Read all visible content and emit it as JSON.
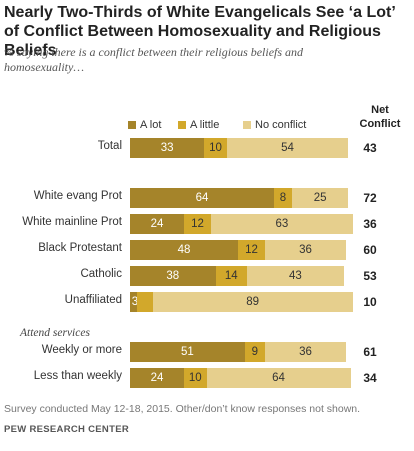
{
  "title": "Nearly Two-Thirds of White Evangelicals See ‘a Lot’ of Conflict Between Homosexuality and Religious Beliefs",
  "subtitle": "% saying there is a conflict between their religious beliefs and homosexuality…",
  "net_header": "Net Conflict",
  "section_label": "Attend services",
  "footnote": "Survey conducted May 12-18, 2015. Other/don’t know responses not shown.",
  "source": "PEW RESEARCH CENTER",
  "colors": {
    "a_lot": "#a5842a",
    "a_little": "#d2a82b",
    "no_conflict": "#e6cf8d"
  },
  "legend": [
    "A lot",
    "A little",
    "No conflict"
  ],
  "chart_data": {
    "type": "bar",
    "orientation": "horizontal",
    "stacked": true,
    "categories": [
      "Total",
      "White evang Prot",
      "White mainline Prot",
      "Black Protestant",
      "Catholic",
      "Unaffiliated",
      "Weekly or more",
      "Less than weekly"
    ],
    "series": [
      {
        "name": "A lot",
        "values": [
          33,
          64,
          24,
          48,
          38,
          3,
          51,
          24
        ]
      },
      {
        "name": "A little",
        "values": [
          10,
          8,
          12,
          12,
          14,
          7,
          9,
          10
        ]
      },
      {
        "name": "No conflict",
        "values": [
          54,
          25,
          63,
          36,
          43,
          89,
          36,
          64
        ]
      }
    ],
    "net_conflict": [
      43,
      72,
      36,
      60,
      53,
      10,
      61,
      34
    ],
    "value_labels": {
      "A lot": [
        "33",
        "64",
        "24",
        "48",
        "38",
        "3",
        "51",
        "24"
      ],
      "A little": [
        "10",
        "8",
        "12",
        "12",
        "14",
        "",
        "9",
        "10"
      ],
      "No conflict": [
        "54",
        "25",
        "63",
        "36",
        "43",
        "89",
        "36",
        "64"
      ]
    },
    "legend_position": "top",
    "grid": false
  }
}
